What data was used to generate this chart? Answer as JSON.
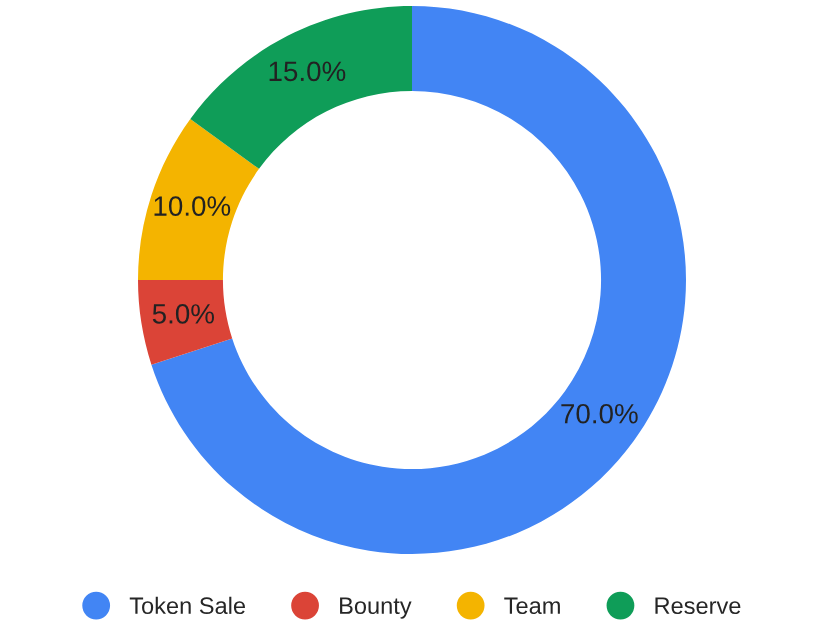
{
  "chart_data": {
    "type": "donut",
    "categories": [
      "Token Sale",
      "Bounty",
      "Team",
      "Reserve"
    ],
    "values": [
      70,
      5,
      10,
      15
    ],
    "value_labels": [
      "70.0%",
      "5.0%",
      "10.0%",
      "15.0%"
    ],
    "colors": [
      "#4285f4",
      "#db4437",
      "#f4b400",
      "#0f9d58"
    ],
    "legend": "bottom"
  }
}
